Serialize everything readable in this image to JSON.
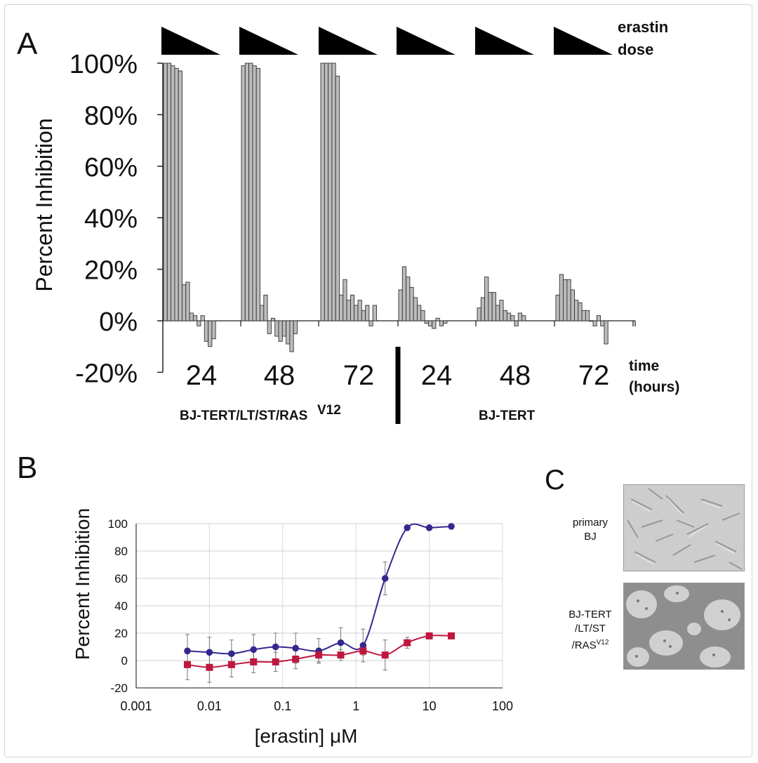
{
  "panel_a": {
    "letter": "A",
    "dose_label_line1": "erastin",
    "dose_label_line2": "dose",
    "time_label_line1": "time",
    "time_label_line2": "(hours)",
    "group1_label": "BJ-TERT/LT/ST/RAS",
    "group1_label_sup": "V12",
    "group2_label": "BJ-TERT"
  },
  "panel_b": {
    "letter": "B"
  },
  "panel_c": {
    "letter": "C",
    "photo1_label_line1": "primary",
    "photo1_label_line2": "BJ",
    "photo2_label_line1": "BJ-TERT",
    "photo2_label_line2": "/LT/ST",
    "photo2_label_line3": "/RAS",
    "photo2_label_sup": "V12"
  },
  "chart_data": [
    {
      "type": "bar",
      "ylabel": "Percent Inhibition",
      "ylim": [
        -20,
        100
      ],
      "yticks": [
        "100%",
        "80%",
        "60%",
        "40%",
        "20%",
        "0%",
        "-20%"
      ],
      "xlabel": "time (hours)",
      "grid": false,
      "groups": [
        {
          "time": "24",
          "cell_line": "BJ-TERT/LT/ST/RASV12",
          "values": [
            100,
            100,
            99,
            98,
            97,
            14,
            15,
            3,
            2,
            -2,
            2,
            -8,
            -10,
            -7
          ]
        },
        {
          "time": "48",
          "cell_line": "BJ-TERT/LT/ST/RASV12",
          "values": [
            99,
            100,
            100,
            99,
            98,
            6,
            10,
            -5,
            1,
            -6,
            -8,
            -6,
            -9,
            -12,
            -5
          ]
        },
        {
          "time": "72",
          "cell_line": "BJ-TERT/LT/ST/RASV12",
          "values": [
            100,
            100,
            100,
            100,
            95,
            10,
            16,
            8,
            10,
            6,
            8,
            4,
            6,
            -2,
            6
          ]
        },
        {
          "time": "24",
          "cell_line": "BJ-TERT",
          "values": [
            12,
            21,
            17,
            13,
            9,
            6,
            4,
            -1,
            -2,
            -3,
            1,
            -2,
            -1
          ]
        },
        {
          "time": "48",
          "cell_line": "BJ-TERT",
          "values": [
            5,
            9,
            17,
            11,
            11,
            6,
            8,
            4,
            3,
            2,
            -2,
            3,
            2
          ]
        },
        {
          "time": "72",
          "cell_line": "BJ-TERT",
          "values": [
            10,
            18,
            16,
            16,
            12,
            8,
            7,
            4,
            4,
            0,
            -2,
            2,
            -2,
            -9
          ]
        }
      ]
    },
    {
      "type": "line",
      "ylabel": "Percent Inhibition",
      "xlabel": "[erastin] μM",
      "xscale": "log",
      "xlim": [
        0.001,
        100
      ],
      "xticks": [
        "0.001",
        "0.01",
        "0.1",
        "1",
        "10",
        "100"
      ],
      "ylim": [
        -20,
        100
      ],
      "yticks": [
        "100",
        "80",
        "60",
        "40",
        "20",
        "0",
        "-20"
      ],
      "grid": true,
      "x": [
        0.005,
        0.01,
        0.02,
        0.04,
        0.08,
        0.15,
        0.31,
        0.62,
        1.25,
        2.5,
        5,
        10,
        20
      ],
      "series": [
        {
          "color": "#33288f",
          "marker": "circle",
          "values": [
            7,
            6,
            5,
            8,
            10,
            9,
            7,
            13,
            11,
            60,
            97,
            97,
            98
          ],
          "errors": [
            12,
            11,
            10,
            11,
            10,
            11,
            9,
            11,
            12,
            12,
            0,
            0,
            0
          ]
        },
        {
          "color": "#c0173f",
          "marker": "square",
          "values": [
            -3,
            -5,
            -3,
            -1,
            -1,
            1,
            4,
            4,
            7,
            4,
            13,
            18,
            18
          ],
          "errors": [
            11,
            11,
            9,
            8,
            7,
            7,
            5,
            4,
            3,
            11,
            4,
            0,
            0
          ]
        }
      ]
    }
  ]
}
